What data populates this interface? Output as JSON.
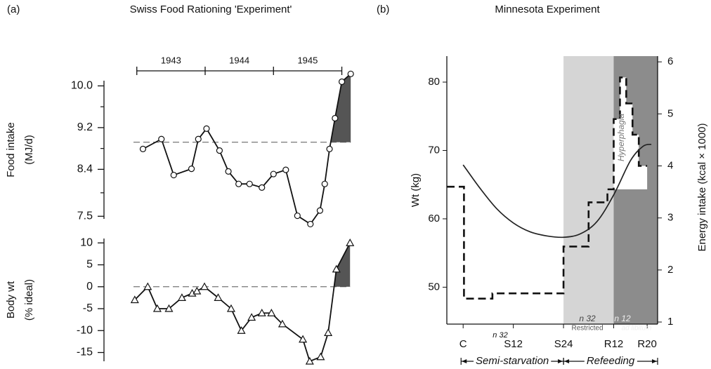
{
  "chart_data": [
    {
      "type": "line",
      "panel_label": "(a)",
      "title": "Swiss Food Rationing 'Experiment'",
      "ylabel": "Food intake",
      "ylabel_unit": "(MJ/d)",
      "marker": "circle",
      "x": [
        1943.09,
        1943.36,
        1943.54,
        1943.8,
        1943.9,
        1944.02,
        1944.21,
        1944.34,
        1944.49,
        1944.65,
        1944.83,
        1945.0,
        1945.18,
        1945.35,
        1945.54,
        1945.68,
        1945.75,
        1945.82,
        1945.9,
        1946.0,
        1946.13
      ],
      "series": [
        {
          "color": "#111111",
          "values": [
            8.79,
            8.98,
            8.29,
            8.41,
            8.98,
            9.18,
            8.76,
            8.36,
            8.12,
            8.12,
            8.05,
            8.31,
            8.39,
            7.51,
            7.35,
            7.61,
            8.12,
            8.79,
            9.38,
            10.08,
            10.23
          ]
        }
      ],
      "reference": 8.92,
      "shade_color": "#555555",
      "xlim": [
        1942.9,
        1946.2
      ],
      "ylim": [
        7.45,
        10.1
      ],
      "yticks": [
        7.5,
        8.4,
        9.2,
        {
          "value": 10,
          "label": "10.0"
        }
      ],
      "minor_yticks": [
        7.95,
        8.8,
        9.6
      ],
      "year_ticks": [
        1943,
        1944,
        1945,
        1946
      ],
      "year_labels": [
        1943,
        1944,
        1945
      ]
    },
    {
      "type": "line",
      "ylabel": "Body wt",
      "ylabel_unit": "(% ideal)",
      "marker": "triangle",
      "x": [
        1942.97,
        1943.16,
        1943.3,
        1943.47,
        1943.66,
        1943.81,
        1943.88,
        1943.99,
        1944.19,
        1944.38,
        1944.53,
        1944.68,
        1944.83,
        1944.97,
        1945.13,
        1945.43,
        1945.53,
        1945.69,
        1945.8,
        1945.92,
        1946.12
      ],
      "series": [
        {
          "color": "#111111",
          "values": [
            -3,
            0,
            -5,
            -5,
            -2.5,
            -1.5,
            -1,
            0,
            -2.5,
            -5,
            -10,
            -7,
            -6,
            -6,
            -8.5,
            -12,
            -17,
            -16,
            -10.5,
            4,
            10
          ]
        }
      ],
      "reference": 0,
      "shade_color": "#555555",
      "xlim": [
        1942.9,
        1946.2
      ],
      "ylim": [
        -17,
        11
      ],
      "yticks": [
        -15,
        -10,
        -5,
        0,
        5,
        10
      ]
    },
    {
      "type": "combo",
      "panel_label": "(b)",
      "title": "Minnesota Experiment",
      "ylabel": "Wt (kg)",
      "y2label": "Energy intake (kcal × 1000)",
      "xlim": [
        -3.9,
        46.5
      ],
      "ylim": [
        44.6,
        83.8
      ],
      "y2lim": [
        0.96,
        6.11
      ],
      "xticks": [
        {
          "value": 0,
          "label": "C"
        },
        {
          "value": 12,
          "label": "S12"
        },
        {
          "value": 24,
          "label": "S24"
        },
        {
          "value": 36,
          "label": "R12"
        },
        {
          "value": 44,
          "label": "R20"
        }
      ],
      "yticks": [
        50,
        60,
        70,
        80
      ],
      "y2ticks": [
        1,
        2,
        3,
        4,
        5,
        6
      ],
      "bands": [
        {
          "from": 24,
          "to": 36,
          "color": "#d5d5d5"
        },
        {
          "from": 36,
          "to": 46.5,
          "color": "#8c8c8c"
        }
      ],
      "series": [
        {
          "type": "line",
          "color": "#222222",
          "x": [
            0,
            4,
            8,
            12,
            16,
            20,
            24,
            28,
            32,
            36,
            40,
            43,
            45
          ],
          "values": [
            67.9,
            64.5,
            61.5,
            59.4,
            58.1,
            57.5,
            57.3,
            57.8,
            59.6,
            63.5,
            68.5,
            70.6,
            70.9
          ]
        },
        {
          "type": "step",
          "axis": "y2",
          "color": "#111111",
          "edges": [
            -3.9,
            0.2,
            7,
            24,
            30,
            34.5,
            36,
            37.5,
            39,
            40.5,
            42,
            44
          ],
          "values": [
            3.6,
            1.45,
            1.55,
            2.45,
            3.3,
            3.55,
            4.9,
            5.7,
            5.2,
            4.6,
            4.0
          ]
        }
      ],
      "phases": [
        {
          "label": "Semi-starvation",
          "from": -0.5,
          "to": 24
        },
        {
          "label": "Refeeding",
          "from": 24,
          "to": 46.5
        }
      ],
      "annotations": [
        "n 32",
        "n 32",
        "Restricted",
        "n 12",
        "ad libitum",
        "Hyperphagia"
      ]
    }
  ]
}
